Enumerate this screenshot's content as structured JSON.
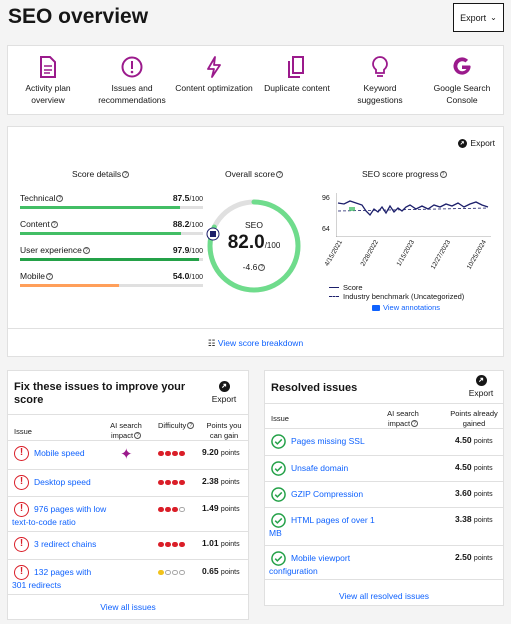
{
  "page": {
    "title": "SEO overview",
    "export_label": "Export"
  },
  "tools": [
    {
      "label": "Activity plan overview",
      "icon": "document-icon"
    },
    {
      "label": "Issues and recommendations",
      "icon": "alert-circle-icon"
    },
    {
      "label": "Content optimization",
      "icon": "lightning-icon"
    },
    {
      "label": "Duplicate content",
      "icon": "copy-icon"
    },
    {
      "label": "Keyword suggestions",
      "icon": "lightbulb-icon"
    },
    {
      "label": "Google Search Console",
      "icon": "google-icon"
    }
  ],
  "score_card": {
    "export_label": "Export",
    "details_title": "Score details",
    "overall_title": "Overall score",
    "progress_title": "SEO score progress",
    "details": [
      {
        "label": "Technical",
        "score": "87.5",
        "max": "/100",
        "fill": 0.875,
        "color": "#42be65"
      },
      {
        "label": "Content",
        "score": "88.2",
        "max": "/100",
        "fill": 0.882,
        "color": "#42be65"
      },
      {
        "label": "User experience",
        "score": "97.9",
        "max": "/100",
        "fill": 0.979,
        "color": "#24a148"
      },
      {
        "label": "Mobile",
        "score": "54.0",
        "max": "/100",
        "fill": 0.54,
        "color": "#ff9f5a"
      }
    ],
    "overall": {
      "label": "SEO",
      "score": "82.0",
      "max": "/100",
      "change": "-4.6",
      "fill": 0.82,
      "color": "#6fdc8c"
    },
    "progress": {
      "y_ticks": [
        "96",
        "64"
      ],
      "x_ticks": [
        "4/15/2021",
        "2/28/2022",
        "1/15/2023",
        "12/27/2023",
        "10/25/2024"
      ],
      "legend_score": "Score",
      "legend_benchmark": "Industry benchmark (Uncategorized)",
      "annotations_label": "View annotations",
      "series_color": "#1c1f6b"
    },
    "breakdown_label": "View score breakdown"
  },
  "fix_issues": {
    "title": "Fix these issues to improve your score",
    "export_label": "Export",
    "headers": {
      "issue": "Issue",
      "ai": "AI search impact",
      "difficulty": "Difficulty",
      "points": "Points you can gain"
    },
    "rows": [
      {
        "label": "Mobile speed",
        "ai_impact": true,
        "difficulty": 4,
        "difficulty_color": "#da1e28",
        "points": "9.20",
        "unit": "points"
      },
      {
        "label": "Desktop speed",
        "ai_impact": false,
        "difficulty": 4,
        "difficulty_color": "#da1e28",
        "points": "2.38",
        "unit": "points"
      },
      {
        "label": "976 pages with low text-to-code ratio",
        "ai_impact": false,
        "difficulty": 3,
        "difficulty_color": "#da1e28",
        "points": "1.49",
        "unit": "points"
      },
      {
        "label": "3 redirect chains",
        "ai_impact": false,
        "difficulty": 4,
        "difficulty_color": "#da1e28",
        "points": "1.01",
        "unit": "points"
      },
      {
        "label": "132 pages with 301 redirects",
        "ai_impact": false,
        "difficulty": 1,
        "difficulty_color": "#f1c21b",
        "points": "0.65",
        "unit": "points"
      }
    ],
    "view_all_label": "View all issues"
  },
  "resolved": {
    "title": "Resolved issues",
    "export_label": "Export",
    "headers": {
      "issue": "Issue",
      "ai": "AI search impact",
      "points": "Points already gained"
    },
    "rows": [
      {
        "label": "Pages missing SSL",
        "points": "4.50",
        "unit": "points"
      },
      {
        "label": "Unsafe domain",
        "points": "4.50",
        "unit": "points"
      },
      {
        "label": "GZIP Compression",
        "points": "3.60",
        "unit": "points"
      },
      {
        "label": "HTML pages of over 1 MB",
        "points": "3.38",
        "unit": "points"
      },
      {
        "label": "Mobile viewport configuration",
        "points": "2.50",
        "unit": "points"
      }
    ],
    "view_all_label": "View all resolved issues"
  }
}
